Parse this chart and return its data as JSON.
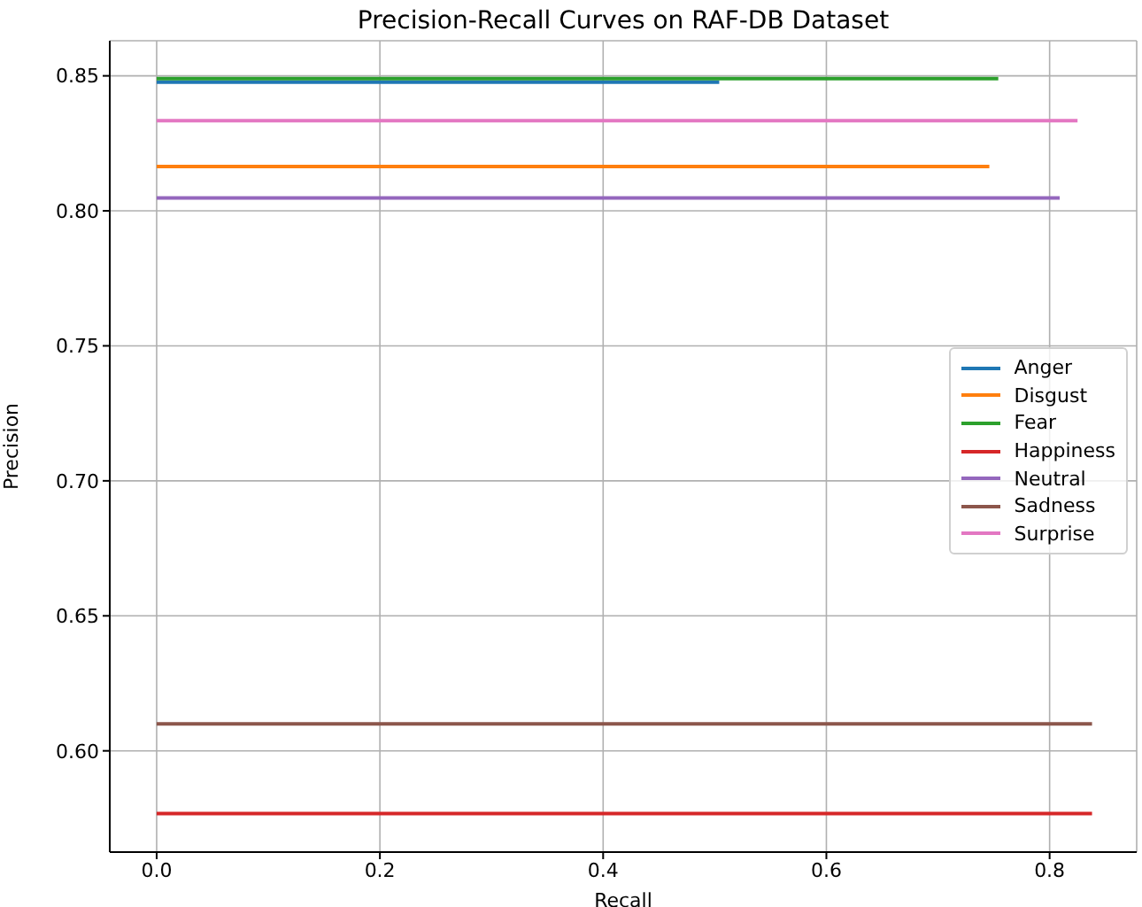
{
  "chart_data": {
    "type": "line",
    "title": "Precision-Recall Curves on RAF-DB Dataset",
    "xlabel": "Recall",
    "ylabel": "Precision",
    "xlim": [
      -0.042,
      0.878
    ],
    "xticks": [
      {
        "value": 0,
        "label": "0.0"
      },
      {
        "value": 0.2,
        "label": "0.2"
      },
      {
        "value": 0.4,
        "label": "0.4"
      },
      {
        "value": 0.6,
        "label": "0.6"
      },
      {
        "value": 0.8,
        "label": "0.8"
      }
    ],
    "ylim": [
      0.5625,
      0.863
    ],
    "yticks": [
      {
        "value": 0.6,
        "label": "0.60"
      },
      {
        "value": 0.65,
        "label": "0.65"
      },
      {
        "value": 0.7,
        "label": "0.70"
      },
      {
        "value": 0.75,
        "label": "0.75"
      },
      {
        "value": 0.8,
        "label": "0.80"
      },
      {
        "value": 0.85,
        "label": "0.85"
      }
    ],
    "grid": true,
    "legend": "right",
    "marker": "none",
    "line_style": "solid",
    "series": [
      {
        "name": "Anger",
        "color": "#1f77b4",
        "x": [
          0,
          0.504
        ],
        "values": [
          0.8477,
          0.8477
        ]
      },
      {
        "name": "Disgust",
        "color": "#ff7f0e",
        "x": [
          0,
          0.746
        ],
        "values": [
          0.8164,
          0.8164
        ]
      },
      {
        "name": "Fear",
        "color": "#2ca02c",
        "x": [
          0,
          0.754
        ],
        "values": [
          0.849,
          0.849
        ]
      },
      {
        "name": "Happiness",
        "color": "#d62728",
        "x": [
          0,
          0.838
        ],
        "values": [
          0.5768,
          0.5768
        ]
      },
      {
        "name": "Neutral",
        "color": "#9467bd",
        "x": [
          0,
          0.809
        ],
        "values": [
          0.8048,
          0.8048
        ]
      },
      {
        "name": "Sadness",
        "color": "#8c564b",
        "x": [
          0,
          0.838
        ],
        "values": [
          0.61,
          0.61
        ]
      },
      {
        "name": "Surprise",
        "color": "#e377c2",
        "x": [
          0,
          0.825
        ],
        "values": [
          0.8334,
          0.8334
        ]
      }
    ]
  }
}
